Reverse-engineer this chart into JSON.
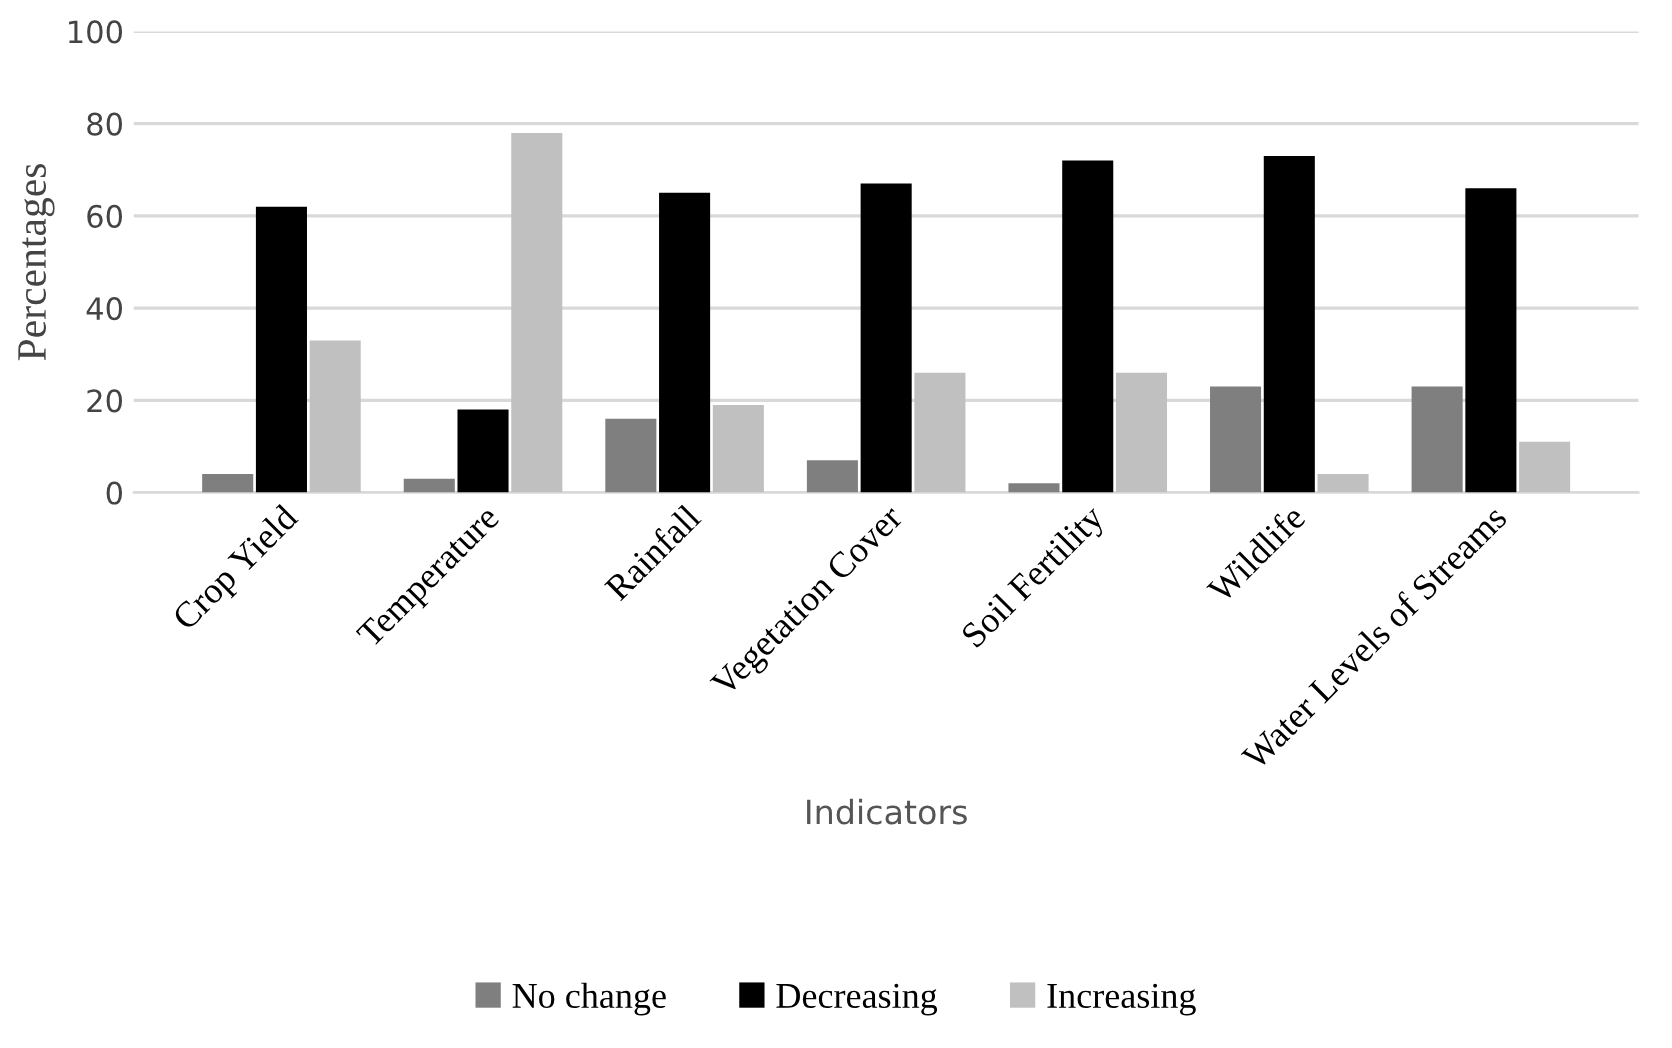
{
  "chart_data": {
    "type": "bar",
    "xlabel": "Indicators",
    "ylabel": "Percentages",
    "categories": [
      "Crop Yield",
      "Temperature",
      "Rainfall",
      "Vegetation Cover",
      "Soil Fertility",
      "Wildlife",
      "Water Levels of Streams"
    ],
    "series": [
      {
        "name": "No change",
        "color": "#7f7f7f",
        "values": [
          4,
          3,
          16,
          7,
          2,
          23,
          23
        ]
      },
      {
        "name": "Decreasing",
        "color": "#000000",
        "values": [
          62,
          18,
          65,
          67,
          72,
          73,
          66
        ]
      },
      {
        "name": "Increasing",
        "color": "#c0c0c0",
        "values": [
          33,
          78,
          19,
          26,
          26,
          4,
          11
        ]
      }
    ],
    "ylim": [
      0,
      100
    ],
    "yticks": [
      0,
      20,
      40,
      60,
      80,
      100
    ],
    "grid": "y",
    "legend": "bottom"
  }
}
